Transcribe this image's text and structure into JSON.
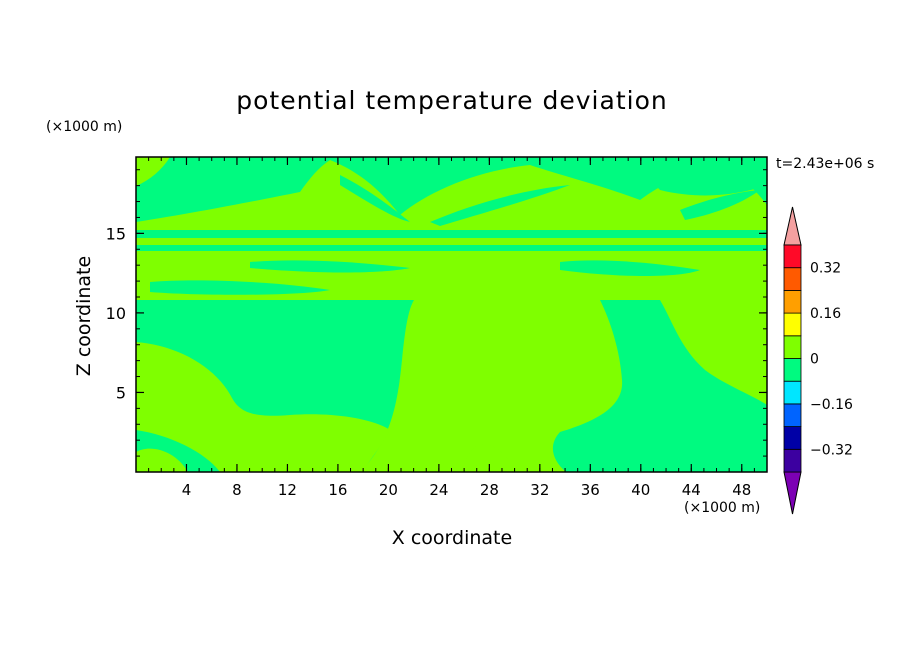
{
  "colors": {
    "pos_0_08": "#7fff00",
    "neg_0_08": "#00fa80",
    "colorbar": [
      "#7c00b4",
      "#3c00a0",
      "#0000a6",
      "#0064ff",
      "#00e6ff",
      "#00fa80",
      "#7fff00",
      "#ffff00",
      "#ff9f00",
      "#ff5a00",
      "#ff0a28",
      "#f4a0a0"
    ]
  },
  "chart_data": {
    "type": "heatmap",
    "title": "potential temperature deviation",
    "xlabel": "X coordinate",
    "ylabel": "Z coordinate",
    "x_unit": "(×1000 m)",
    "z_unit": "(×1000 m)",
    "time": "t=2.43e+06 s",
    "xlim": [
      0,
      50
    ],
    "ylim": [
      0,
      19.8
    ],
    "x_ticks": [
      "4",
      "8",
      "12",
      "16",
      "20",
      "24",
      "28",
      "32",
      "36",
      "40",
      "44",
      "48"
    ],
    "y_ticks": [
      "5",
      "10",
      "15"
    ],
    "colorbar": {
      "levels": [
        -0.4,
        -0.32,
        -0.24,
        -0.16,
        -0.08,
        0,
        0.08,
        0.16,
        0.24,
        0.32,
        0.4
      ],
      "labels": [
        "0.32",
        "0.16",
        "0",
        "−0.16",
        "−0.32"
      ],
      "label_values": [
        0.32,
        0.16,
        0,
        -0.16,
        -0.32
      ]
    },
    "fields": [
      {
        "range": [
          -0.08,
          0
        ],
        "color_key": "neg_0_08"
      },
      {
        "range": [
          0,
          0.08
        ],
        "color_key": "pos_0_08"
      }
    ]
  }
}
